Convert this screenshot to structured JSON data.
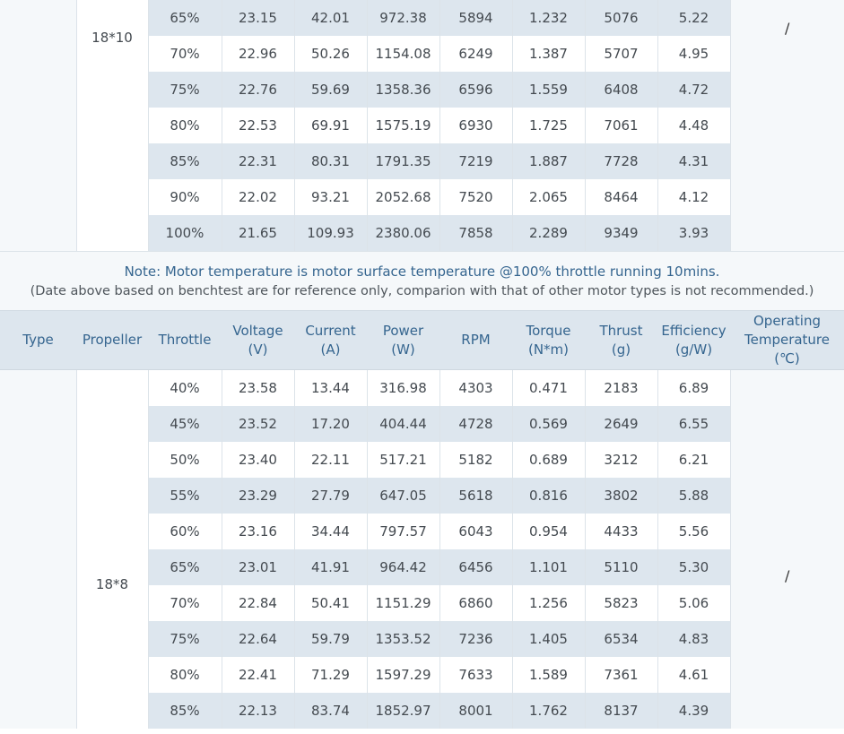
{
  "table1": {
    "propeller": "18*10",
    "temp": "/",
    "rows": [
      {
        "throttle": "65%",
        "voltage": "23.15",
        "current": "42.01",
        "power": "972.38",
        "rpm": "5894",
        "torque": "1.232",
        "thrust": "5076",
        "efficiency": "5.22"
      },
      {
        "throttle": "70%",
        "voltage": "22.96",
        "current": "50.26",
        "power": "1154.08",
        "rpm": "6249",
        "torque": "1.387",
        "thrust": "5707",
        "efficiency": "4.95"
      },
      {
        "throttle": "75%",
        "voltage": "22.76",
        "current": "59.69",
        "power": "1358.36",
        "rpm": "6596",
        "torque": "1.559",
        "thrust": "6408",
        "efficiency": "4.72"
      },
      {
        "throttle": "80%",
        "voltage": "22.53",
        "current": "69.91",
        "power": "1575.19",
        "rpm": "6930",
        "torque": "1.725",
        "thrust": "7061",
        "efficiency": "4.48"
      },
      {
        "throttle": "85%",
        "voltage": "22.31",
        "current": "80.31",
        "power": "1791.35",
        "rpm": "7219",
        "torque": "1.887",
        "thrust": "7728",
        "efficiency": "4.31"
      },
      {
        "throttle": "90%",
        "voltage": "22.02",
        "current": "93.21",
        "power": "2052.68",
        "rpm": "7520",
        "torque": "2.065",
        "thrust": "8464",
        "efficiency": "4.12"
      },
      {
        "throttle": "100%",
        "voltage": "21.65",
        "current": "109.93",
        "power": "2380.06",
        "rpm": "7858",
        "torque": "2.289",
        "thrust": "9349",
        "efficiency": "3.93"
      }
    ]
  },
  "note": {
    "line1": "Note: Motor temperature is motor surface temperature @100% throttle running 10mins.",
    "line2": "(Date above based on benchtest are for reference only, comparion with that of other motor types is not recommended.)"
  },
  "header": {
    "type": "Type",
    "propeller": "Propeller",
    "throttle": "Throttle",
    "voltage": "Voltage",
    "voltage_unit": "(V)",
    "current": "Current",
    "current_unit": "(A)",
    "power": "Power",
    "power_unit": "(W)",
    "rpm": "RPM",
    "torque": "Torque",
    "torque_unit": "(N*m)",
    "thrust": "Thrust",
    "thrust_unit": "(g)",
    "efficiency": "Efficiency",
    "efficiency_unit": "(g/W)",
    "temp_line1": "Operating",
    "temp_line2": "Temperature",
    "temp_unit": "(℃)"
  },
  "table2": {
    "propeller": "18*8",
    "temp": "/",
    "rows": [
      {
        "throttle": "40%",
        "voltage": "23.58",
        "current": "13.44",
        "power": "316.98",
        "rpm": "4303",
        "torque": "0.471",
        "thrust": "2183",
        "efficiency": "6.89"
      },
      {
        "throttle": "45%",
        "voltage": "23.52",
        "current": "17.20",
        "power": "404.44",
        "rpm": "4728",
        "torque": "0.569",
        "thrust": "2649",
        "efficiency": "6.55"
      },
      {
        "throttle": "50%",
        "voltage": "23.40",
        "current": "22.11",
        "power": "517.21",
        "rpm": "5182",
        "torque": "0.689",
        "thrust": "3212",
        "efficiency": "6.21"
      },
      {
        "throttle": "55%",
        "voltage": "23.29",
        "current": "27.79",
        "power": "647.05",
        "rpm": "5618",
        "torque": "0.816",
        "thrust": "3802",
        "efficiency": "5.88"
      },
      {
        "throttle": "60%",
        "voltage": "23.16",
        "current": "34.44",
        "power": "797.57",
        "rpm": "6043",
        "torque": "0.954",
        "thrust": "4433",
        "efficiency": "5.56"
      },
      {
        "throttle": "65%",
        "voltage": "23.01",
        "current": "41.91",
        "power": "964.42",
        "rpm": "6456",
        "torque": "1.101",
        "thrust": "5110",
        "efficiency": "5.30"
      },
      {
        "throttle": "70%",
        "voltage": "22.84",
        "current": "50.41",
        "power": "1151.29",
        "rpm": "6860",
        "torque": "1.256",
        "thrust": "5823",
        "efficiency": "5.06"
      },
      {
        "throttle": "75%",
        "voltage": "22.64",
        "current": "59.79",
        "power": "1353.52",
        "rpm": "7236",
        "torque": "1.405",
        "thrust": "6534",
        "efficiency": "4.83"
      },
      {
        "throttle": "80%",
        "voltage": "22.41",
        "current": "71.29",
        "power": "1597.29",
        "rpm": "7633",
        "torque": "1.589",
        "thrust": "7361",
        "efficiency": "4.61"
      },
      {
        "throttle": "85%",
        "voltage": "22.13",
        "current": "83.74",
        "power": "1852.97",
        "rpm": "8001",
        "torque": "1.762",
        "thrust": "8137",
        "efficiency": "4.39"
      }
    ]
  }
}
